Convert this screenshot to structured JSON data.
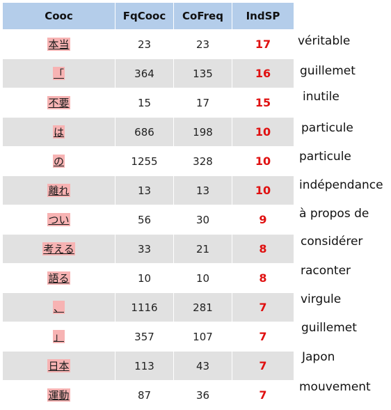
{
  "headers": {
    "cooc": "Cooc",
    "fqcooc": "FqCooc",
    "cofreq": "CoFreq",
    "indsp": "IndSP"
  },
  "rows": [
    {
      "cooc": "本当",
      "fqcooc": "23",
      "cofreq": "23",
      "indsp": "17",
      "translation": "véritable"
    },
    {
      "cooc": "「",
      "fqcooc": "364",
      "cofreq": "135",
      "indsp": "16",
      "translation": "guillemet"
    },
    {
      "cooc": "不要",
      "fqcooc": "15",
      "cofreq": "17",
      "indsp": "15",
      "translation": "inutile"
    },
    {
      "cooc": "は",
      "fqcooc": "686",
      "cofreq": "198",
      "indsp": "10",
      "translation": "particule"
    },
    {
      "cooc": "の",
      "fqcooc": "1255",
      "cofreq": "328",
      "indsp": "10",
      "translation": "particule"
    },
    {
      "cooc": "離れ",
      "fqcooc": "13",
      "cofreq": "13",
      "indsp": "10",
      "translation": "indépendance"
    },
    {
      "cooc": "つい",
      "fqcooc": "56",
      "cofreq": "30",
      "indsp": "9",
      "translation": "à propos de"
    },
    {
      "cooc": "考える",
      "fqcooc": "33",
      "cofreq": "21",
      "indsp": "8",
      "translation": "considérer"
    },
    {
      "cooc": "語る",
      "fqcooc": "10",
      "cofreq": "10",
      "indsp": "8",
      "translation": "raconter"
    },
    {
      "cooc": "、",
      "fqcooc": "1116",
      "cofreq": "281",
      "indsp": "7",
      "translation": "virgule"
    },
    {
      "cooc": "」",
      "fqcooc": "357",
      "cofreq": "107",
      "indsp": "7",
      "translation": "guillemet"
    },
    {
      "cooc": "日本",
      "fqcooc": "113",
      "cofreq": "43",
      "indsp": "7",
      "translation": "Japon"
    },
    {
      "cooc": "運動",
      "fqcooc": "87",
      "cofreq": "36",
      "indsp": "7",
      "translation": "mouvement"
    }
  ],
  "colors": {
    "header_bg": "#b4cdea",
    "row_alt_bg": "#e1e1e1",
    "word_highlight": "#f7b3b3",
    "indsp_text": "#e01010"
  }
}
